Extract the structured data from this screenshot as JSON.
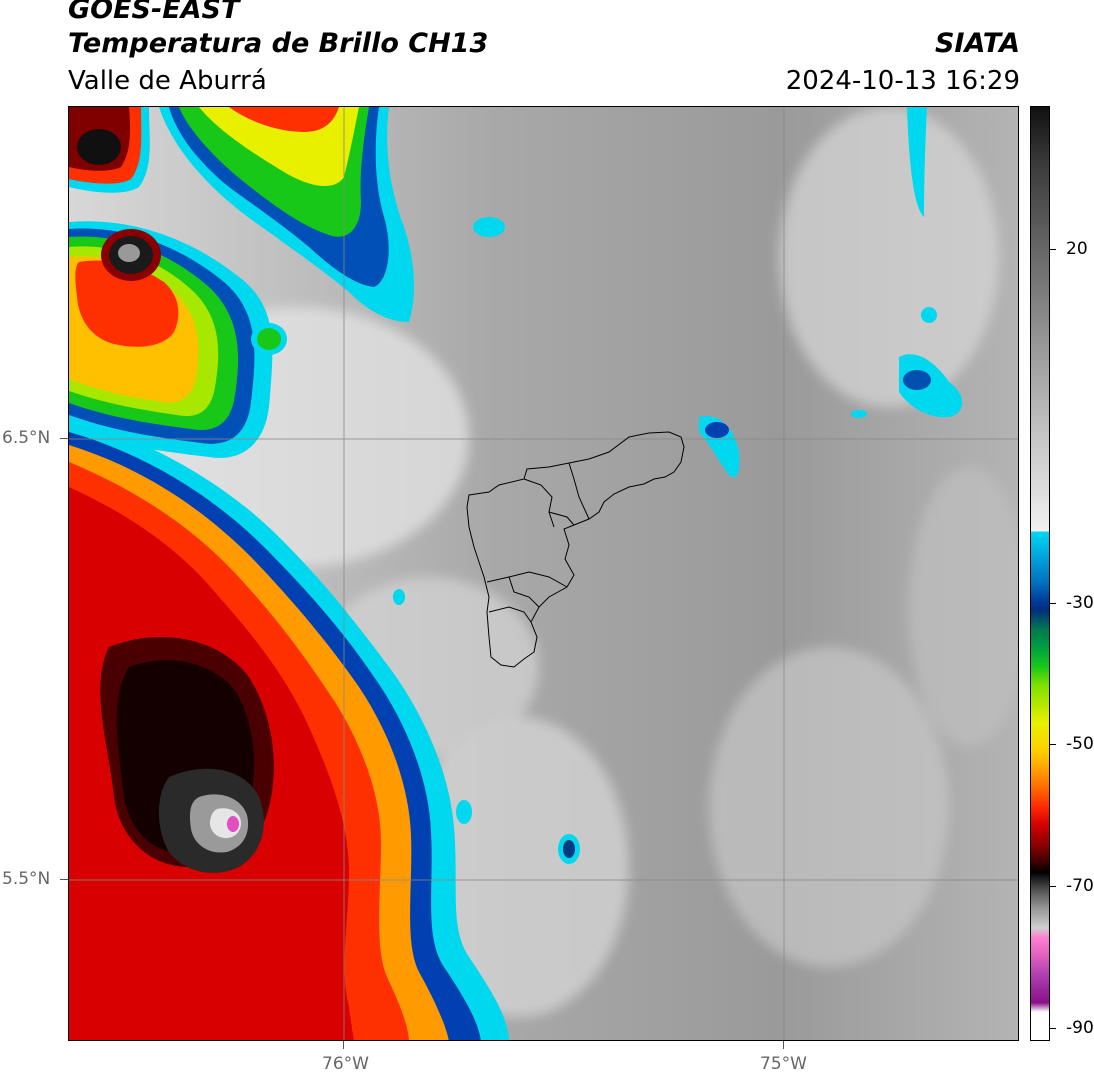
{
  "header": {
    "title_line1": "GOES-EAST",
    "title_line2": "Temperatura de Brillo CH13",
    "brand": "SIATA",
    "subtitle": "Valle de Aburrá",
    "datetime": "2024-10-13 16:29"
  },
  "map": {
    "lat_labels": [
      "6.5°N",
      "5.5°N"
    ],
    "lon_labels": [
      "76°W",
      "75°W"
    ],
    "gridline_color": "#888888",
    "region_outline": "Valle de Aburrá municipalities"
  },
  "colorbar": {
    "tick_labels": [
      "20",
      "-30",
      "-50",
      "-70",
      "-90"
    ],
    "palette_notes": "grey (warm) to cyan/blue/green/yellow/orange/red/black/pink/purple (cold)"
  }
}
